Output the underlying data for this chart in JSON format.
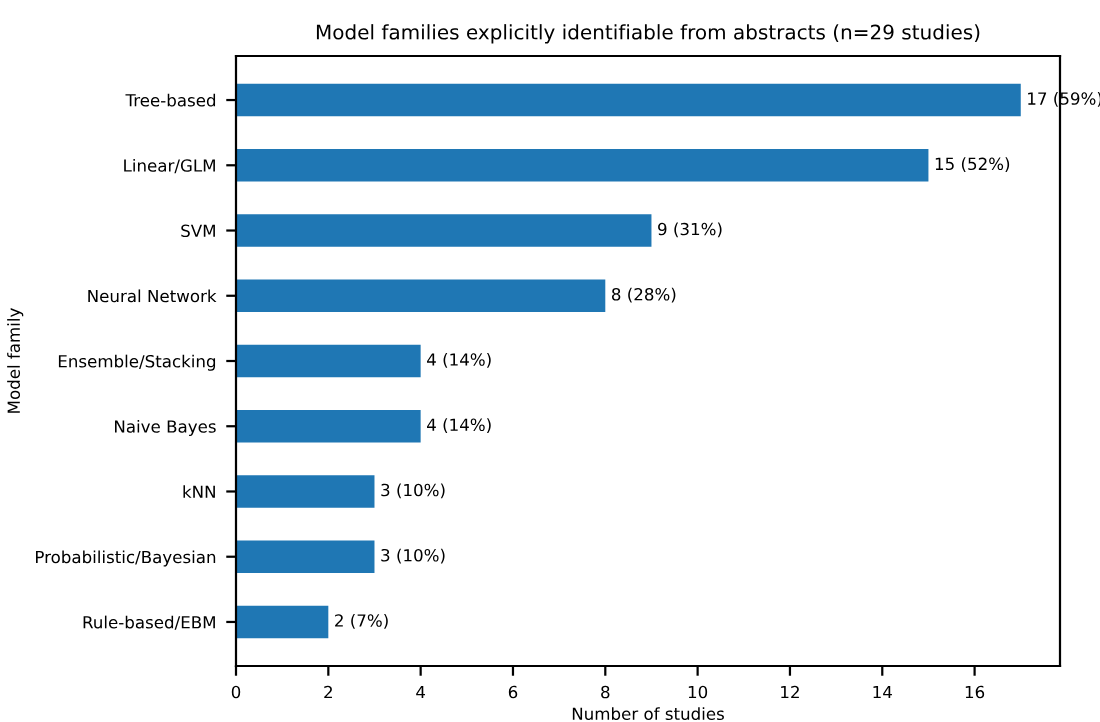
{
  "chart_data": {
    "type": "bar",
    "orientation": "horizontal",
    "title": "Model families explicitly identifiable from abstracts (n=29 studies)",
    "xlabel": "Number of studies",
    "ylabel": "Model family",
    "categories": [
      "Tree-based",
      "Linear/GLM",
      "SVM",
      "Neural Network",
      "Ensemble/Stacking",
      "Naive Bayes",
      "kNN",
      "Probabilistic/Bayesian",
      "Rule-based/EBM"
    ],
    "values": [
      17,
      15,
      9,
      8,
      4,
      4,
      3,
      3,
      2
    ],
    "value_labels": [
      "17 (59%)",
      "15 (52%)",
      "9 (31%)",
      "8 (28%)",
      "4 (14%)",
      "4 (14%)",
      "3 (10%)",
      "3 (10%)",
      "2 (7%)"
    ],
    "color": "#1f77b4",
    "xlim": [
      0,
      17.85
    ],
    "xticks": [
      0,
      2,
      4,
      6,
      8,
      10,
      12,
      14,
      16
    ],
    "grid": false,
    "legend": false
  }
}
